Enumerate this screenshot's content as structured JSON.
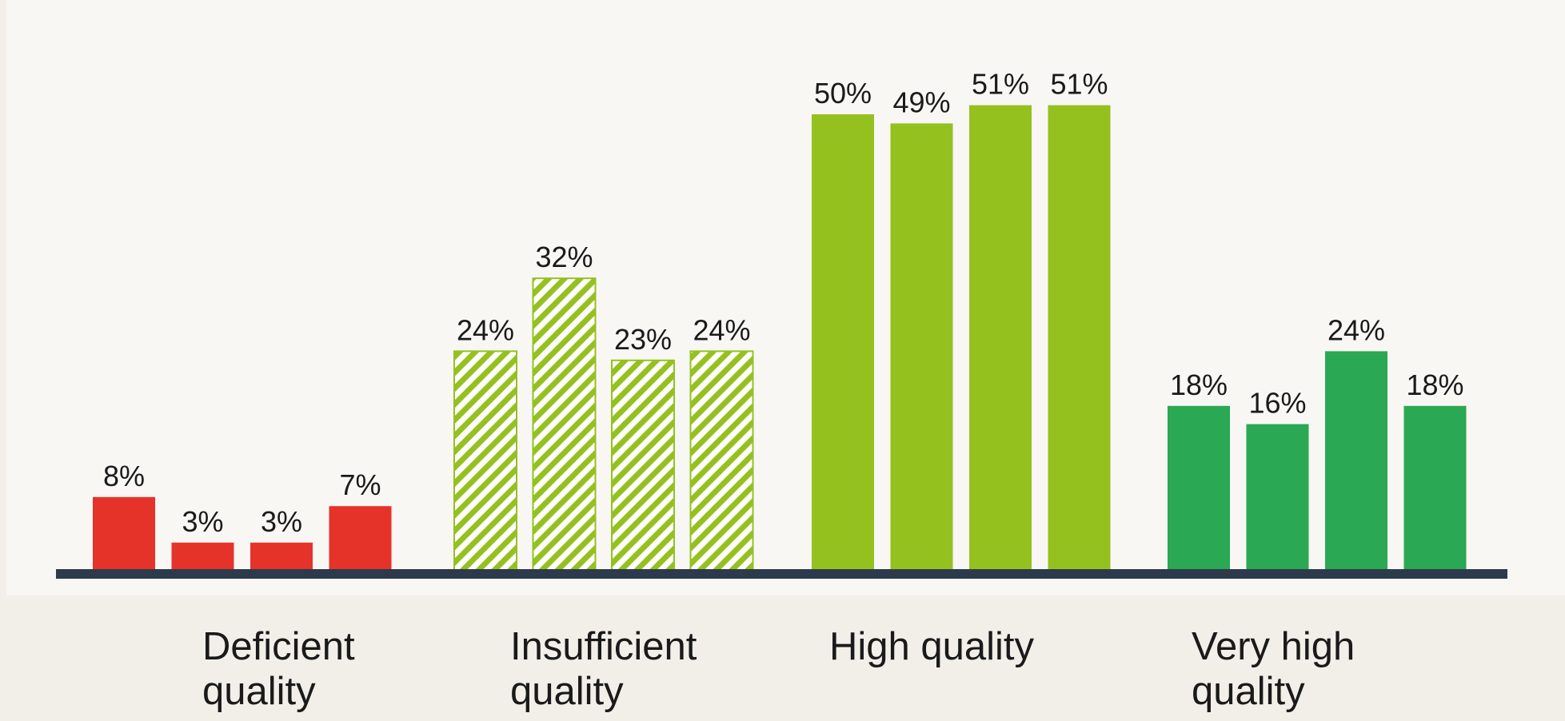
{
  "chart_data": {
    "type": "bar",
    "categories": [
      "Deficient quality",
      "Insufficient quality",
      "High quality",
      "Very high quality"
    ],
    "category_label_lines": [
      [
        "Deficient",
        "quality"
      ],
      [
        "Insufficient",
        "quality"
      ],
      [
        "High quality"
      ],
      [
        "Very high",
        "quality"
      ]
    ],
    "values": [
      [
        8,
        3,
        3,
        7
      ],
      [
        24,
        32,
        23,
        24
      ],
      [
        50,
        49,
        51,
        51
      ],
      [
        18,
        16,
        24,
        18
      ]
    ],
    "value_labels": [
      [
        "8%",
        "3%",
        "3%",
        "7%"
      ],
      [
        "24%",
        "32%",
        "23%",
        "24%"
      ],
      [
        "50%",
        "49%",
        "51%",
        "51%"
      ],
      [
        "18%",
        "16%",
        "24%",
        "18%"
      ]
    ],
    "group_colors": [
      "#e5332a",
      "#95c11f",
      "#95c11f",
      "#2aa853"
    ],
    "group_patterns": [
      "solid",
      "hatched",
      "solid",
      "solid"
    ],
    "baseline_color": "#2c3a4b",
    "plot_background": "#f8f7f4",
    "page_background": "#f2efe9",
    "ylim": [
      0,
      55
    ],
    "grid": false,
    "legend": "none"
  }
}
